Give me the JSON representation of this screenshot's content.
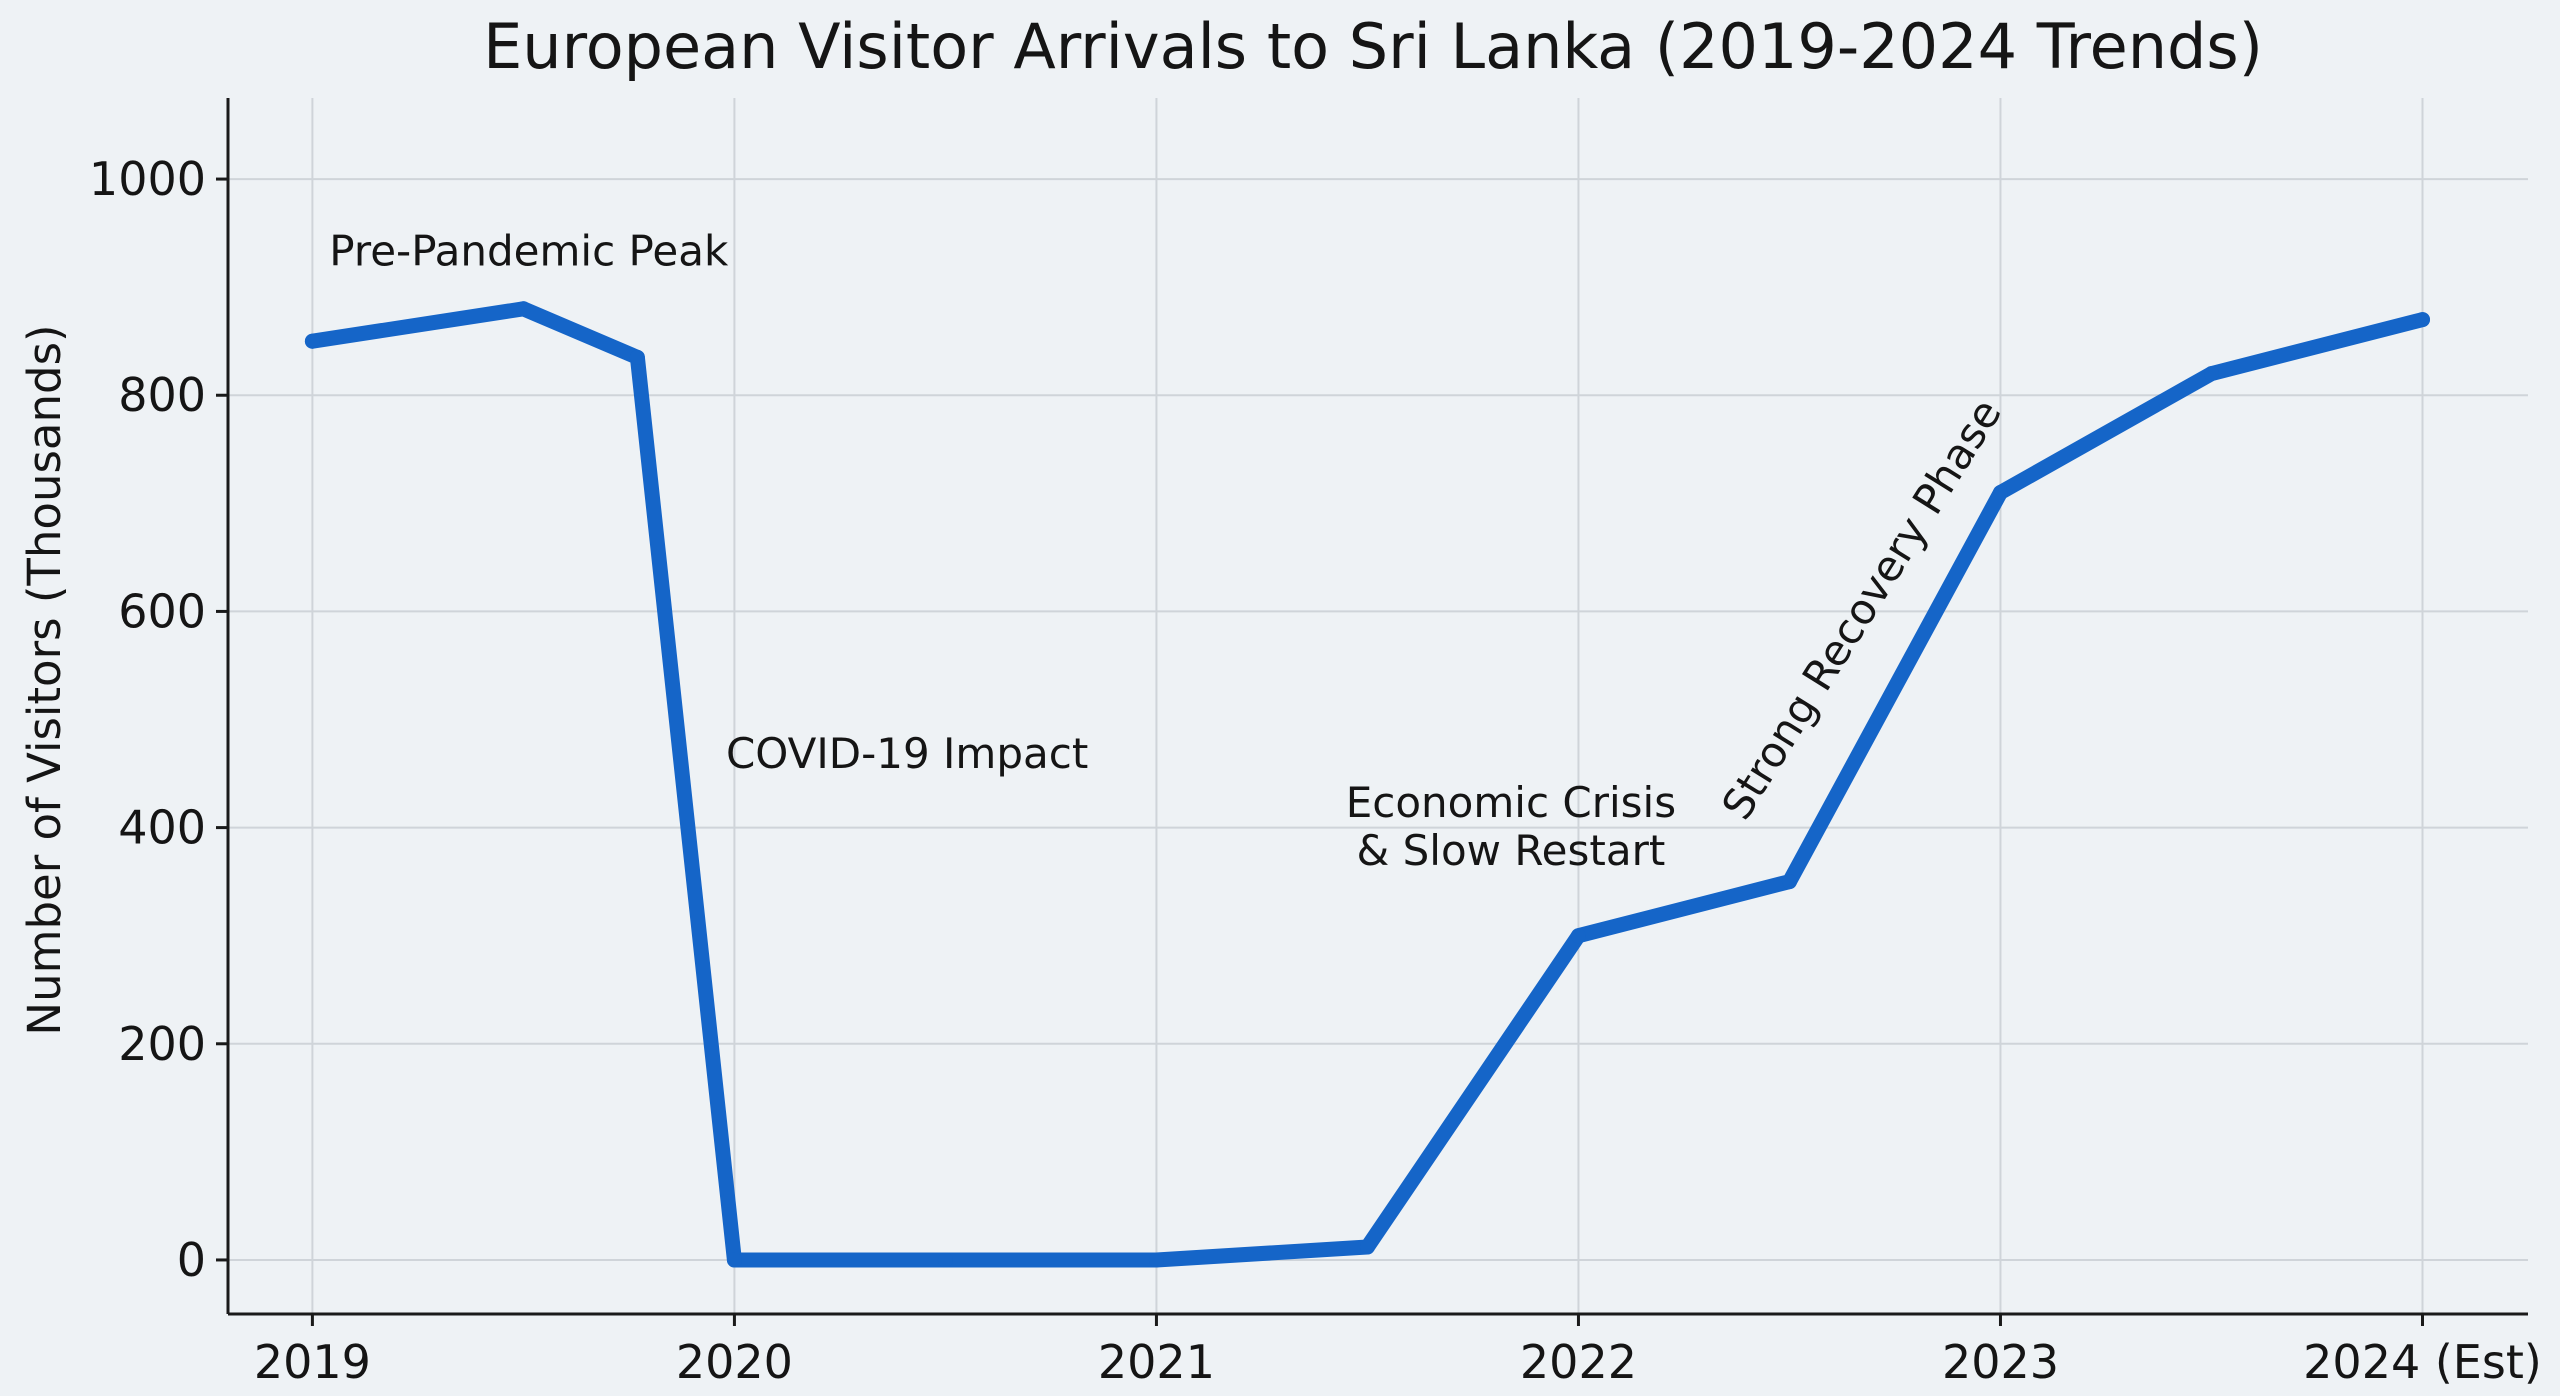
{
  "chart_data": {
    "type": "line",
    "title": "European Visitor Arrivals to Sri Lanka (2019-2024 Trends)",
    "xlabel": "",
    "ylabel": "Number of Visitors (Thousands)",
    "xlim": [
      2018.8,
      2024.25
    ],
    "ylim": [
      -50,
      1075
    ],
    "x_ticks": [
      {
        "value": 2019,
        "label": "2019"
      },
      {
        "value": 2020,
        "label": "2020"
      },
      {
        "value": 2021,
        "label": "2021"
      },
      {
        "value": 2022,
        "label": "2022"
      },
      {
        "value": 2023,
        "label": "2023"
      },
      {
        "value": 2024,
        "label": "2024 (Est)"
      }
    ],
    "y_ticks": [
      {
        "value": 0,
        "label": "0"
      },
      {
        "value": 200,
        "label": "200"
      },
      {
        "value": 400,
        "label": "400"
      },
      {
        "value": 600,
        "label": "600"
      },
      {
        "value": 800,
        "label": "800"
      },
      {
        "value": 1000,
        "label": "1000"
      }
    ],
    "grid": true,
    "series": [
      {
        "name": "European Visitor Arrivals",
        "color": "#1565c8",
        "x": [
          2019.0,
          2019.5,
          2019.77,
          2020.0,
          2020.5,
          2021.0,
          2021.5,
          2022.0,
          2022.5,
          2023.0,
          2023.5,
          2024.0
        ],
        "y": [
          850,
          880,
          835,
          0,
          0,
          0,
          12,
          300,
          350,
          710,
          820,
          870
        ]
      }
    ],
    "annotations": [
      {
        "id": "pre-pandemic",
        "lines": [
          "Pre-Pandemic Peak"
        ],
        "x": 2019.04,
        "y": 920,
        "rotation": 0,
        "anchor": "start"
      },
      {
        "id": "covid",
        "lines": [
          "COVID-19 Impact"
        ],
        "x": 2019.98,
        "y": 455,
        "rotation": 0,
        "anchor": "start"
      },
      {
        "id": "economic-crisis",
        "lines": [
          "Economic Crisis",
          "& Slow Restart"
        ],
        "x": 2021.84,
        "y": 410,
        "rotation": 0,
        "anchor": "middle"
      },
      {
        "id": "recovery",
        "lines": [
          "Strong Recovery Phase"
        ],
        "x": 2022.7,
        "y": 595,
        "rotation": -58,
        "anchor": "middle"
      }
    ]
  }
}
